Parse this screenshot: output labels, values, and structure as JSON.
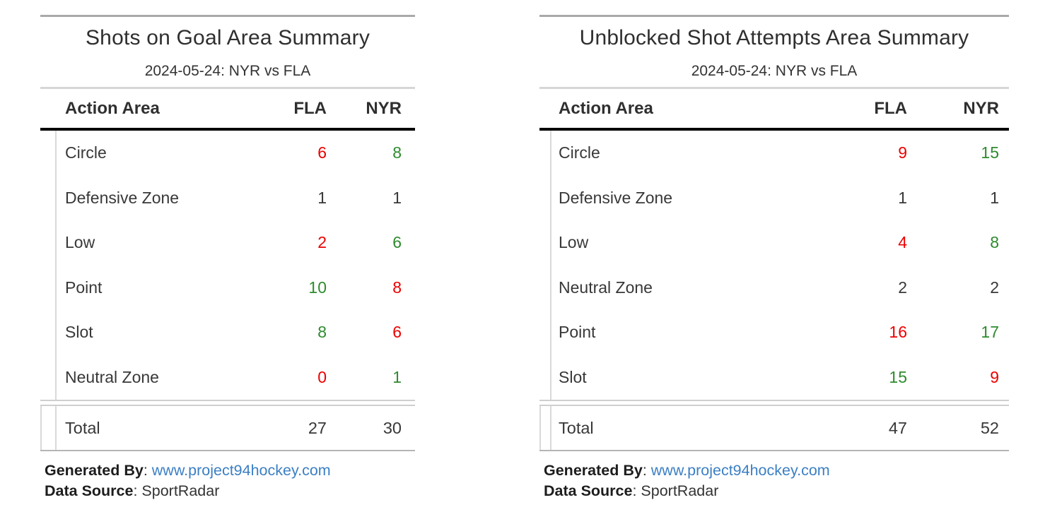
{
  "colors": {
    "red": "#EC0000",
    "green": "#2E8B2E",
    "neutral": "#383838",
    "link": "#3B7FC4"
  },
  "tables": [
    {
      "title": "Shots on Goal Area Summary",
      "subtitle": "2024-05-24: NYR vs FLA",
      "columns": {
        "area": "Action Area",
        "fla": "FLA",
        "nyr": "NYR"
      },
      "rows": [
        {
          "area": "Circle",
          "fla": {
            "text": "6",
            "color": "red"
          },
          "nyr": {
            "text": "8",
            "color": "green"
          }
        },
        {
          "area": "Defensive Zone",
          "fla": {
            "text": "1",
            "color": "neutral"
          },
          "nyr": {
            "text": "1",
            "color": "neutral"
          }
        },
        {
          "area": "Low",
          "fla": {
            "text": "2",
            "color": "red"
          },
          "nyr": {
            "text": "6",
            "color": "green"
          }
        },
        {
          "area": "Point",
          "fla": {
            "text": "10",
            "color": "green"
          },
          "nyr": {
            "text": "8",
            "color": "red"
          }
        },
        {
          "area": "Slot",
          "fla": {
            "text": "8",
            "color": "green"
          },
          "nyr": {
            "text": "6",
            "color": "red"
          }
        },
        {
          "area": "Neutral Zone",
          "fla": {
            "text": "0",
            "color": "red"
          },
          "nyr": {
            "text": "1",
            "color": "green"
          }
        }
      ],
      "total": {
        "label": "Total",
        "fla": "27",
        "nyr": "30"
      },
      "footer": {
        "generated_label": "Generated By",
        "sep": ": ",
        "generated_link": "www.project94hockey.com",
        "source_label": "Data Source",
        "source_value": "SportRadar"
      }
    },
    {
      "title": "Unblocked Shot Attempts Area Summary",
      "subtitle": "2024-05-24: NYR vs FLA",
      "columns": {
        "area": "Action Area",
        "fla": "FLA",
        "nyr": "NYR"
      },
      "rows": [
        {
          "area": "Circle",
          "fla": {
            "text": "9",
            "color": "red"
          },
          "nyr": {
            "text": "15",
            "color": "green"
          }
        },
        {
          "area": "Defensive Zone",
          "fla": {
            "text": "1",
            "color": "neutral"
          },
          "nyr": {
            "text": "1",
            "color": "neutral"
          }
        },
        {
          "area": "Low",
          "fla": {
            "text": "4",
            "color": "red"
          },
          "nyr": {
            "text": "8",
            "color": "green"
          }
        },
        {
          "area": "Neutral Zone",
          "fla": {
            "text": "2",
            "color": "neutral"
          },
          "nyr": {
            "text": "2",
            "color": "neutral"
          }
        },
        {
          "area": "Point",
          "fla": {
            "text": "16",
            "color": "red"
          },
          "nyr": {
            "text": "17",
            "color": "green"
          }
        },
        {
          "area": "Slot",
          "fla": {
            "text": "15",
            "color": "green"
          },
          "nyr": {
            "text": "9",
            "color": "red"
          }
        }
      ],
      "total": {
        "label": "Total",
        "fla": "47",
        "nyr": "52"
      },
      "footer": {
        "generated_label": "Generated By",
        "sep": ": ",
        "generated_link": "www.project94hockey.com",
        "source_label": "Data Source",
        "source_value": "SportRadar"
      }
    }
  ],
  "chart_data": [
    {
      "type": "table",
      "title": "Shots on Goal Area Summary",
      "subtitle": "2024-05-24: NYR vs FLA",
      "columns": [
        "Action Area",
        "FLA",
        "NYR"
      ],
      "rows": [
        [
          "Circle",
          6,
          8
        ],
        [
          "Defensive Zone",
          1,
          1
        ],
        [
          "Low",
          2,
          6
        ],
        [
          "Point",
          10,
          8
        ],
        [
          "Slot",
          8,
          6
        ],
        [
          "Neutral Zone",
          0,
          1
        ],
        [
          "Total",
          27,
          30
        ]
      ]
    },
    {
      "type": "table",
      "title": "Unblocked Shot Attempts Area Summary",
      "subtitle": "2024-05-24: NYR vs FLA",
      "columns": [
        "Action Area",
        "FLA",
        "NYR"
      ],
      "rows": [
        [
          "Circle",
          9,
          15
        ],
        [
          "Defensive Zone",
          1,
          1
        ],
        [
          "Low",
          4,
          8
        ],
        [
          "Neutral Zone",
          2,
          2
        ],
        [
          "Point",
          16,
          17
        ],
        [
          "Slot",
          15,
          9
        ],
        [
          "Total",
          47,
          52
        ]
      ]
    }
  ]
}
